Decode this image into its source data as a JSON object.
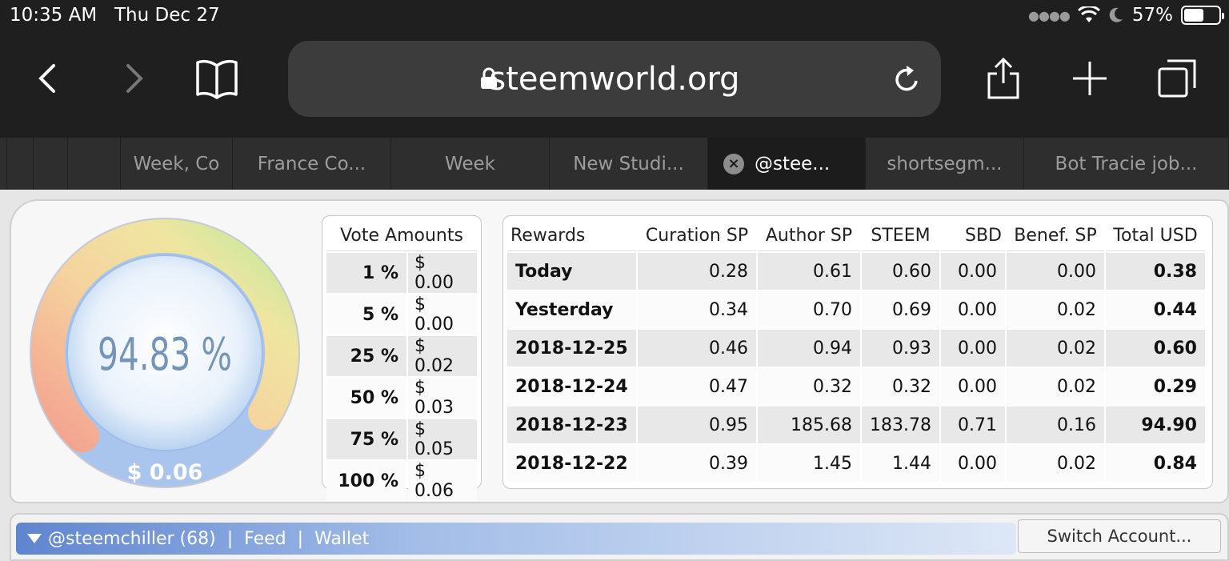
{
  "status": {
    "time": "10:35 AM",
    "date": "Thu Dec 27",
    "battery": "57%",
    "battery_level": 0.57
  },
  "browser": {
    "url": "steemworld.org"
  },
  "tabs": [
    {
      "label": "",
      "width": 9
    },
    {
      "label": "",
      "width": 33
    },
    {
      "label": "",
      "width": 43
    },
    {
      "label": "",
      "width": 66
    },
    {
      "label": "Week, Co",
      "width": 140
    },
    {
      "label": "France Co...",
      "width": 198
    },
    {
      "label": "Week",
      "width": 198
    },
    {
      "label": "New Studi...",
      "width": 198
    },
    {
      "label": "@stee...",
      "width": 197,
      "active": true
    },
    {
      "label": "shortsegm...",
      "width": 198
    },
    {
      "label": "Bot Tracie job...",
      "width": 256
    }
  ],
  "gauge": {
    "percent_text": "94.83 %",
    "percent": 94.83,
    "value_text": "$ 0.06"
  },
  "vote_amounts": {
    "header": "Vote Amounts",
    "rows": [
      {
        "pct": "1 %",
        "amount": "$ 0.00"
      },
      {
        "pct": "5 %",
        "amount": "$ 0.00"
      },
      {
        "pct": "25 %",
        "amount": "$ 0.02"
      },
      {
        "pct": "50 %",
        "amount": "$ 0.03"
      },
      {
        "pct": "75 %",
        "amount": "$ 0.05"
      },
      {
        "pct": "100 %",
        "amount": "$ 0.06"
      }
    ]
  },
  "rewards": {
    "headers": [
      "Rewards",
      "Curation SP",
      "Author SP",
      "STEEM",
      "SBD",
      "Benef. SP",
      "Total USD"
    ],
    "rows": [
      {
        "label": "Today",
        "values": [
          "0.28",
          "0.61",
          "0.60",
          "0.00",
          "0.00",
          "0.38"
        ]
      },
      {
        "label": "Yesterday",
        "values": [
          "0.34",
          "0.70",
          "0.69",
          "0.00",
          "0.02",
          "0.44"
        ]
      },
      {
        "label": "2018-12-25",
        "values": [
          "0.46",
          "0.94",
          "0.93",
          "0.00",
          "0.02",
          "0.60"
        ]
      },
      {
        "label": "2018-12-24",
        "values": [
          "0.47",
          "0.32",
          "0.32",
          "0.00",
          "0.02",
          "0.29"
        ]
      },
      {
        "label": "2018-12-23",
        "values": [
          "0.95",
          "185.68",
          "183.78",
          "0.71",
          "0.16",
          "94.90"
        ]
      },
      {
        "label": "2018-12-22",
        "values": [
          "0.39",
          "1.45",
          "1.44",
          "0.00",
          "0.02",
          "0.84"
        ]
      }
    ]
  },
  "account_bar": {
    "account": "@steemchiller (68)",
    "sep": "|",
    "feed": "Feed",
    "wallet": "Wallet",
    "switch_label": "Switch Account..."
  }
}
